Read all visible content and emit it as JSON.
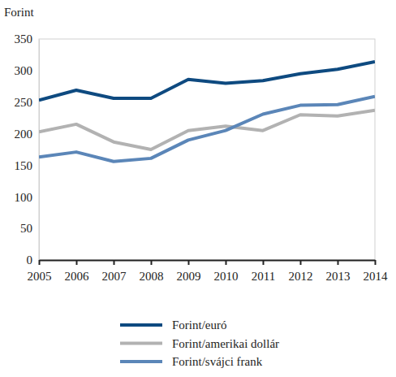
{
  "chart_data": {
    "type": "line",
    "y_label": "Forint",
    "x": [
      2005,
      2006,
      2007,
      2008,
      2009,
      2010,
      2011,
      2012,
      2013,
      2014
    ],
    "xlim": [
      2005,
      2014
    ],
    "xticks": [
      2005,
      2006,
      2007,
      2008,
      2009,
      2010,
      2011,
      2012,
      2013,
      2014
    ],
    "ylim": [
      0,
      350
    ],
    "yticks": [
      0,
      50,
      100,
      150,
      200,
      250,
      300,
      350
    ],
    "grid": false,
    "legend": "bottom",
    "series": [
      {
        "name": "Forint/euró",
        "color": "#0e4a80",
        "values": [
          253,
          269,
          256,
          256,
          286,
          280,
          284,
          295,
          302,
          314
        ]
      },
      {
        "name": "Forint/amerikai dollár",
        "color": "#b2b2b2",
        "values": [
          203,
          215,
          187,
          175,
          205,
          212,
          205,
          230,
          228,
          237
        ]
      },
      {
        "name": "Forint/svájci frank",
        "color": "#5b86b8",
        "values": [
          163,
          171,
          156,
          161,
          190,
          205,
          231,
          245,
          246,
          259
        ]
      }
    ]
  }
}
